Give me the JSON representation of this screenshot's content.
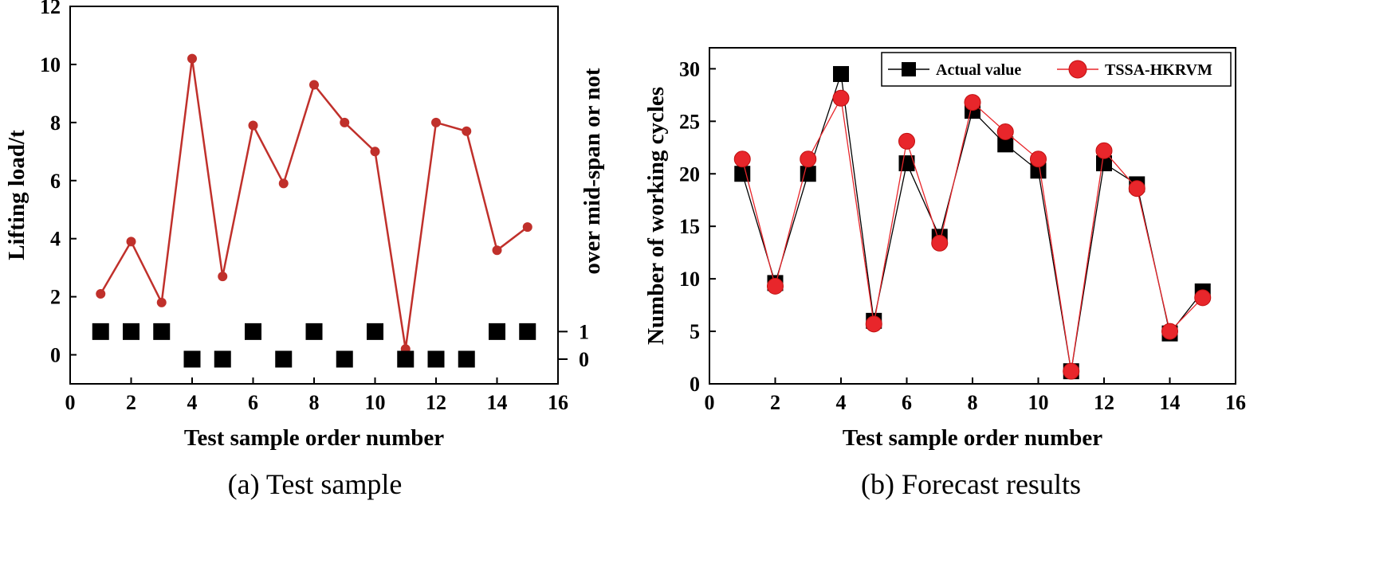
{
  "chart_data": [
    {
      "type": "line",
      "caption": "(a) Test sample",
      "xlabel": "Test sample order number",
      "ylabel": "Lifting load/t",
      "y2label": "over mid-span or not",
      "xlim": [
        0,
        16
      ],
      "ylim": [
        -1,
        12
      ],
      "xticks": [
        "0",
        "2",
        "4",
        "6",
        "8",
        "10",
        "12",
        "14",
        "16"
      ],
      "yticks": [
        "0",
        "2",
        "4",
        "6",
        "8",
        "10",
        "12"
      ],
      "y2ticks": [
        "1",
        "0"
      ],
      "series": [
        {
          "name": "Lifting load",
          "color": "#c0302b",
          "marker": "circle",
          "x": [
            1,
            2,
            3,
            4,
            5,
            6,
            7,
            8,
            9,
            10,
            11,
            12,
            13,
            14,
            15
          ],
          "values": [
            2.1,
            3.9,
            1.8,
            10.2,
            2.7,
            7.9,
            5.9,
            9.3,
            8.0,
            7.0,
            0.2,
            8.0,
            7.7,
            3.6,
            4.4
          ]
        },
        {
          "name": "Over mid-span",
          "color": "#000000",
          "marker": "square",
          "x": [
            1,
            2,
            3,
            4,
            5,
            6,
            7,
            8,
            9,
            10,
            11,
            12,
            13,
            14,
            15
          ],
          "values": [
            1,
            1,
            1,
            0,
            0,
            1,
            0,
            1,
            0,
            1,
            0,
            0,
            0,
            1,
            1
          ]
        }
      ]
    },
    {
      "type": "line",
      "caption": "(b) Forecast results",
      "xlabel": "Test sample order number",
      "ylabel": "Number of working cycles",
      "xlim": [
        0,
        16
      ],
      "ylim": [
        0,
        32
      ],
      "xticks": [
        "0",
        "2",
        "4",
        "6",
        "8",
        "10",
        "12",
        "14",
        "16"
      ],
      "yticks": [
        "0",
        "5",
        "10",
        "15",
        "20",
        "25",
        "30"
      ],
      "legend": "top-right",
      "series": [
        {
          "name": "Actual value",
          "color": "#000000",
          "marker": "square",
          "x": [
            1,
            2,
            3,
            4,
            5,
            6,
            7,
            8,
            9,
            10,
            11,
            12,
            13,
            14,
            15
          ],
          "values": [
            20,
            9.6,
            20,
            29.5,
            6,
            21,
            14,
            26,
            22.8,
            20.3,
            1.2,
            21,
            19,
            4.8,
            8.8
          ]
        },
        {
          "name": "TSSA-HKRVM",
          "color": "#e8262b",
          "marker": "circle",
          "x": [
            1,
            2,
            3,
            4,
            5,
            6,
            7,
            8,
            9,
            10,
            11,
            12,
            13,
            14,
            15
          ],
          "values": [
            21.4,
            9.3,
            21.4,
            27.2,
            5.7,
            23.1,
            13.4,
            26.8,
            24,
            21.4,
            1.2,
            22.2,
            18.6,
            5,
            8.2
          ]
        }
      ]
    }
  ]
}
